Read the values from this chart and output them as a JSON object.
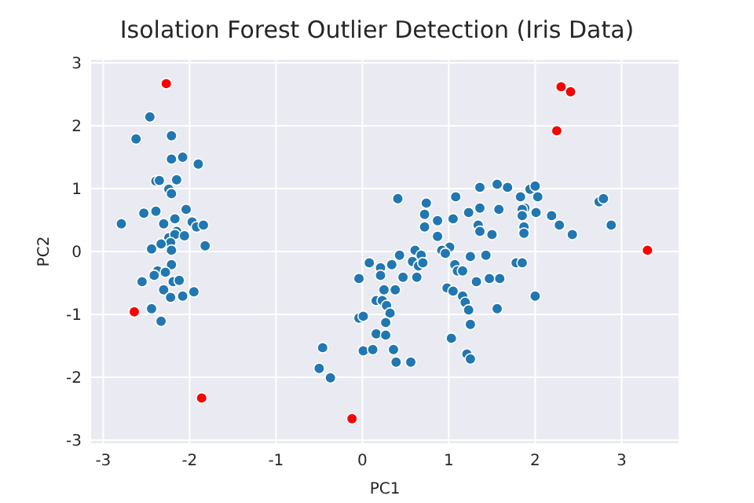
{
  "chart_data": {
    "type": "scatter",
    "title": "Isolation Forest Outlier Detection (Iris Data)",
    "xlabel": "PC1",
    "ylabel": "PC2",
    "xlim": [
      -3.14,
      3.66
    ],
    "ylim": [
      -3.05,
      3.05
    ],
    "xticks": [
      -3,
      -2,
      -1,
      0,
      1,
      2,
      3
    ],
    "yticks": [
      -3,
      -2,
      -1,
      0,
      1,
      2,
      3
    ],
    "grid": true,
    "marker": "circle",
    "series": [
      {
        "color": "#1f77b4",
        "x": [
          -2.46,
          -2.62,
          -2.21,
          -2.21,
          -2.08,
          -1.9,
          -2.39,
          -2.35,
          -2.15,
          -2.24,
          -2.21,
          -2.04,
          -2.53,
          -2.39,
          -2.79,
          -2.17,
          -2.3,
          -1.97,
          -1.92,
          -1.84,
          -2.15,
          -2.24,
          -2.17,
          -2.06,
          -2.22,
          -2.33,
          -2.44,
          -2.21,
          -1.82,
          -2.21,
          -2.37,
          -2.28,
          -2.41,
          -2.55,
          -2.19,
          -2.12,
          -2.3,
          -1.95,
          -2.08,
          -2.22,
          -2.44,
          -2.33,
          -0.46,
          -0.5,
          -0.37,
          0.41,
          0.74,
          1.08,
          1.36,
          1.56,
          0.72,
          1.05,
          1.23,
          1.36,
          1.58,
          0.87,
          0.72,
          1.34,
          1.36,
          1.5,
          0.87,
          0.61,
          0.68,
          1.01,
          0.92,
          0.96,
          0.43,
          0.08,
          0.21,
          0.34,
          0.58,
          0.65,
          0.7,
          1.07,
          1.1,
          1.16,
          1.25,
          1.43,
          -0.04,
          0.21,
          0.47,
          0.63,
          1.32,
          1.47,
          1.59,
          0.25,
          0.38,
          0.98,
          1.05,
          1.16,
          1.19,
          1.23,
          1.56,
          0.16,
          0.23,
          0.28,
          0.32,
          -0.04,
          0.01,
          0.27,
          1.25,
          0.16,
          0.27,
          0.01,
          0.12,
          0.36,
          1.03,
          0.39,
          0.56,
          1.21,
          1.25,
          1.68,
          1.83,
          1.94,
          2.0,
          2.03,
          1.88,
          1.85,
          1.85,
          2.01,
          2.19,
          2.28,
          2.43,
          1.87,
          1.87,
          2.74,
          2.79,
          2.88,
          1.78,
          1.85,
          2.0
        ],
        "values": [
          2.14,
          1.79,
          1.84,
          1.47,
          1.5,
          1.39,
          1.12,
          1.13,
          1.14,
          0.99,
          0.92,
          0.67,
          0.61,
          0.64,
          0.44,
          0.52,
          0.44,
          0.47,
          0.39,
          0.42,
          0.32,
          0.22,
          0.27,
          0.25,
          0.14,
          0.12,
          0.04,
          0.02,
          0.09,
          -0.21,
          -0.31,
          -0.33,
          -0.38,
          -0.48,
          -0.48,
          -0.46,
          -0.61,
          -0.64,
          -0.71,
          -0.73,
          -0.91,
          -1.11,
          -1.53,
          -1.86,
          -2.01,
          0.84,
          0.77,
          0.87,
          1.02,
          1.07,
          0.59,
          0.52,
          0.62,
          0.69,
          0.67,
          0.49,
          0.39,
          0.42,
          0.32,
          0.27,
          0.24,
          0.02,
          -0.06,
          0.07,
          0.02,
          -0.03,
          -0.06,
          -0.18,
          -0.26,
          -0.21,
          -0.16,
          -0.23,
          -0.18,
          -0.21,
          -0.31,
          -0.31,
          -0.08,
          -0.06,
          -0.43,
          -0.38,
          -0.41,
          -0.41,
          -0.48,
          -0.43,
          -0.43,
          -0.61,
          -0.61,
          -0.58,
          -0.63,
          -0.71,
          -0.81,
          -0.93,
          -0.91,
          -0.78,
          -0.78,
          -0.86,
          -0.98,
          -1.06,
          -1.03,
          -1.13,
          -1.16,
          -1.31,
          -1.33,
          -1.58,
          -1.56,
          -1.56,
          -1.38,
          -1.76,
          -1.76,
          -1.63,
          -1.71,
          1.02,
          0.87,
          0.99,
          1.04,
          0.87,
          0.69,
          0.67,
          0.57,
          0.62,
          0.57,
          0.42,
          0.27,
          0.39,
          0.29,
          0.79,
          0.84,
          0.42,
          -0.18,
          -0.18,
          -0.71
        ]
      },
      {
        "color": "#ff0000",
        "x": [
          -2.27,
          -2.64,
          -1.86,
          -0.12,
          2.3,
          2.41,
          2.25,
          3.3
        ],
        "values": [
          2.67,
          -0.96,
          -2.33,
          -2.66,
          2.62,
          2.54,
          1.92,
          0.02
        ]
      }
    ]
  }
}
